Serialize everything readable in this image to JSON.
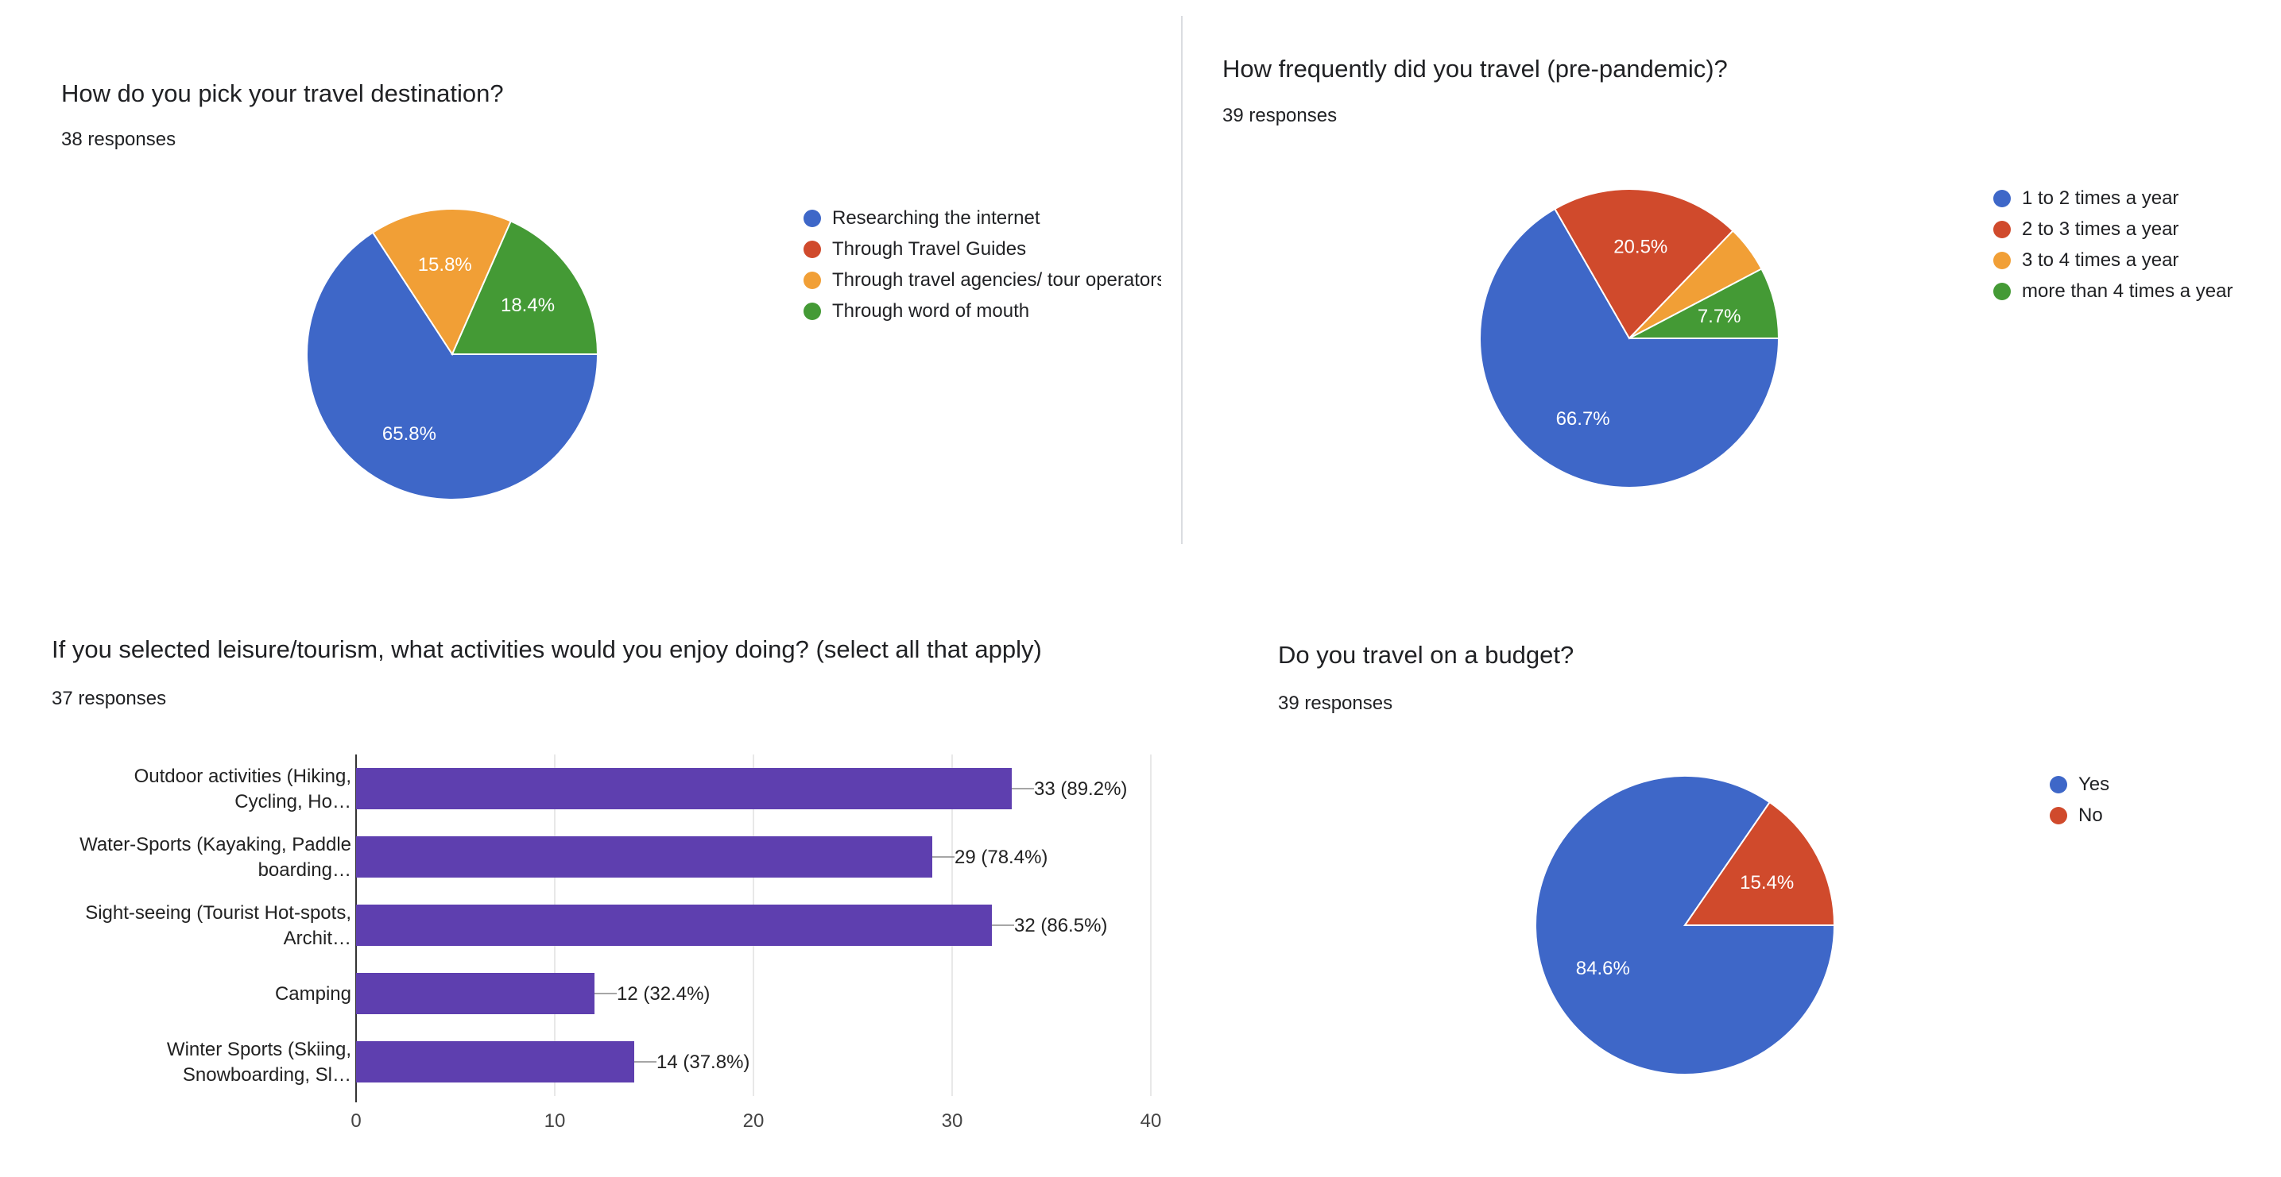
{
  "colors": {
    "blue": "#3e67c8",
    "red": "#d04a2c",
    "orange": "#f19f36",
    "green": "#449a35",
    "purple": "#5e3faf",
    "divider": "#dadce0",
    "grid": "#e8e8e8"
  },
  "panels": [
    {
      "title": "How do you pick your travel destination?",
      "responses": "38 responses"
    },
    {
      "title": "How frequently did you travel (pre-pandemic)?",
      "responses": "39 responses"
    },
    {
      "title": "If you selected leisure/tourism, what activities would you enjoy doing? (select all that apply)",
      "responses": "37 responses"
    },
    {
      "title": "Do you travel on a budget?",
      "responses": "39 responses"
    }
  ],
  "chart_data": [
    {
      "type": "pie",
      "title": "How do you pick your travel destination?",
      "subtitle": "38 responses",
      "legend_position": "right",
      "slices": [
        {
          "label": "Researching the internet",
          "value": 65.8,
          "display": "65.8%",
          "color": "#3e67c8"
        },
        {
          "label": "Through Travel Guides",
          "value": 0,
          "display": "",
          "color": "#d04a2c"
        },
        {
          "label": "Through travel agencies/ tour operators",
          "value": 15.8,
          "display": "15.8%",
          "color": "#f19f36"
        },
        {
          "label": "Through word of mouth",
          "value": 18.4,
          "display": "18.4%",
          "color": "#449a35"
        }
      ]
    },
    {
      "type": "pie",
      "title": "How frequently did you travel (pre-pandemic)?",
      "subtitle": "39 responses",
      "legend_position": "right",
      "slices": [
        {
          "label": "1 to 2 times a year",
          "value": 66.7,
          "display": "66.7%",
          "color": "#3e67c8"
        },
        {
          "label": "2 to 3 times a year",
          "value": 20.5,
          "display": "20.5%",
          "color": "#d04a2c"
        },
        {
          "label": "3 to 4 times a year",
          "value": 5.1,
          "display": "",
          "color": "#f19f36"
        },
        {
          "label": "more than 4 times a year",
          "value": 7.7,
          "display": "7.7%",
          "color": "#449a35"
        }
      ]
    },
    {
      "type": "bar",
      "orientation": "horizontal",
      "title": "If you selected leisure/tourism, what activities would you enjoy doing? (select all that apply)",
      "subtitle": "37 responses",
      "categories": [
        [
          "Outdoor activities (Hiking,",
          "Cycling, Ho…"
        ],
        [
          "Water-Sports (Kayaking, Paddle",
          "boarding…"
        ],
        [
          "Sight-seeing (Tourist Hot-spots,",
          "Archit…"
        ],
        [
          "Camping"
        ],
        [
          "Winter Sports (Skiing,",
          "Snowboarding, Sl…"
        ]
      ],
      "values": [
        33,
        29,
        32,
        12,
        14
      ],
      "labels": [
        "33 (89.2%)",
        "29 (78.4%)",
        "32 (86.5%)",
        "12 (32.4%)",
        "14 (37.8%)"
      ],
      "xlim": [
        0,
        40
      ],
      "xticks": [
        0,
        10,
        20,
        30,
        40
      ],
      "grid": true,
      "color": "#5e3faf"
    },
    {
      "type": "pie",
      "title": "Do you travel on a budget?",
      "subtitle": "39 responses",
      "legend_position": "right",
      "slices": [
        {
          "label": "Yes",
          "value": 84.6,
          "display": "84.6%",
          "color": "#3e67c8"
        },
        {
          "label": "No",
          "value": 15.4,
          "display": "15.4%",
          "color": "#d04a2c"
        }
      ]
    }
  ]
}
